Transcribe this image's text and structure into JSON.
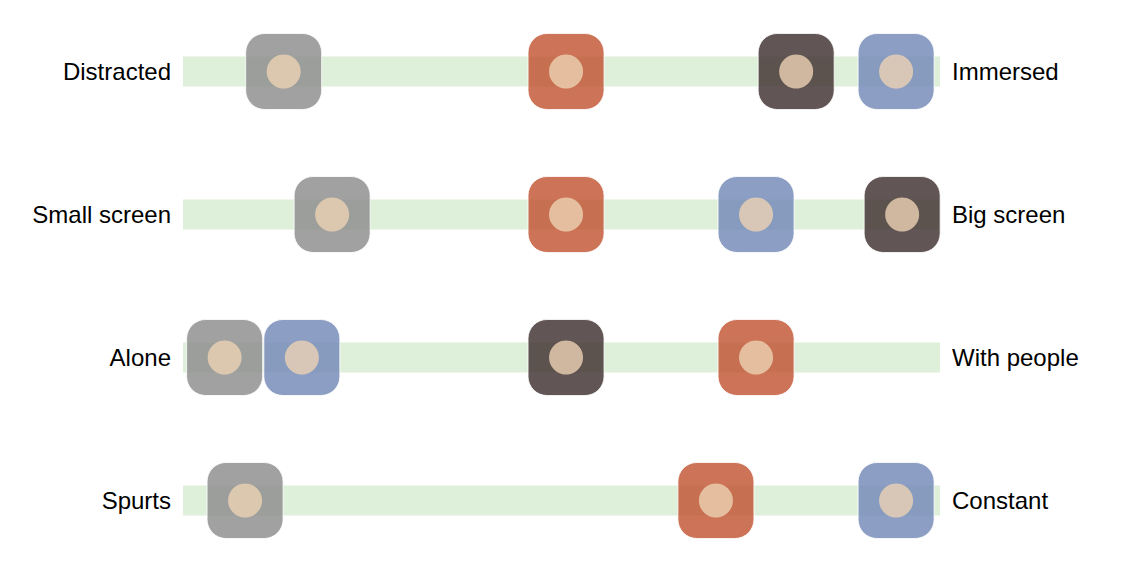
{
  "chart_data": {
    "type": "scatter",
    "left_labels": [
      "Distracted",
      "Small screen",
      "Alone",
      "Spurts"
    ],
    "right_labels": [
      "Immersed",
      "Big screen",
      "With people",
      "Constant"
    ],
    "xlim": [
      0,
      100
    ],
    "tick_labels": false,
    "color": "#dff0da",
    "marker": "square",
    "series": [
      {
        "color": "#8a8a8a",
        "values": [
          13.3,
          19.7,
          5.5,
          8.2
        ]
      },
      {
        "color": "#c0502e",
        "values": [
          50.6,
          50.6,
          75.7,
          70.4
        ]
      },
      {
        "color": "#3b2b2b",
        "values": [
          81,
          95,
          50.6,
          null
        ]
      },
      {
        "color": "#6f86b5",
        "values": [
          94.2,
          75.7,
          15.7,
          94.2
        ]
      }
    ]
  }
}
